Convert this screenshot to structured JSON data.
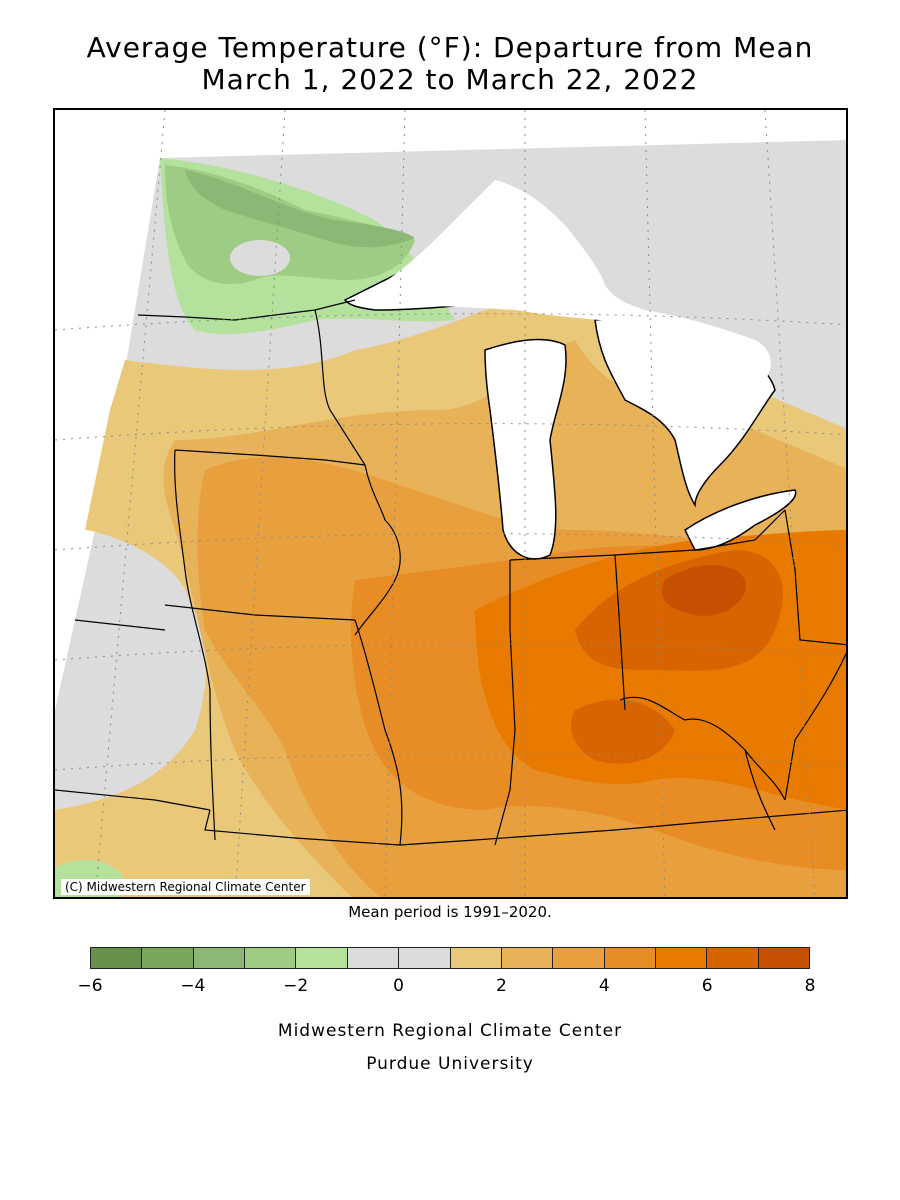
{
  "header": {
    "title_line1": "Average Temperature (°F): Departure from Mean",
    "title_line2": "March 1, 2022 to March 22, 2022"
  },
  "map": {
    "copyright": "(C) Midwestern Regional Climate Center",
    "mean_period": "Mean period is 1991–2020."
  },
  "legend": {
    "colors": [
      "#66904c",
      "#79a55d",
      "#8bb874",
      "#9fcc84",
      "#b4e29c",
      "#dcdcdc",
      "#dcdcdc",
      "#eac87a",
      "#e8b259",
      "#e8a03e",
      "#e88d26",
      "#e87a00",
      "#d86400",
      "#c45000"
    ],
    "ticks": [
      "−6",
      "−4",
      "−2",
      "0",
      "2",
      "4",
      "6",
      "8"
    ]
  },
  "footer": {
    "line1": "Midwestern Regional Climate Center",
    "line2": "Purdue University"
  }
}
